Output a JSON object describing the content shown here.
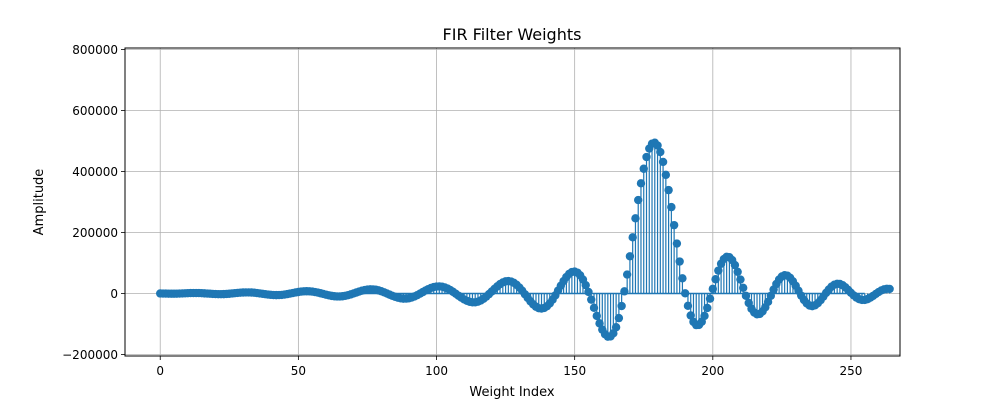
{
  "chart_data": {
    "type": "stem",
    "title": "FIR Filter Weights",
    "xlabel": "Weight Index",
    "ylabel": "Amplitude",
    "xlim": [
      -12.75,
      267.75
    ],
    "ylim": [
      -205000,
      805000
    ],
    "xticks": [
      0,
      50,
      100,
      150,
      200,
      250
    ],
    "xtick_labels": [
      "0",
      "50",
      "100",
      "150",
      "200",
      "250"
    ],
    "yticks": [
      -200000,
      0,
      200000,
      400000,
      600000,
      800000
    ],
    "ytick_labels": [
      "−200000",
      "0",
      "200000",
      "400000",
      "600000",
      "800000"
    ],
    "grid": true,
    "series": [
      {
        "color": "#1f77b4",
        "x_start": 0,
        "x_step": 1,
        "count": 256,
        "values": [
          0,
          -200,
          -400,
          -600,
          -800,
          -800,
          -600,
          -200,
          200,
          600,
          1000,
          1300,
          1500,
          1500,
          1300,
          900,
          400,
          -200,
          -800,
          -1400,
          -1900,
          -2200,
          -2300,
          -2100,
          -1600,
          -900,
          0,
          900,
          1800,
          2600,
          3200,
          3500,
          3500,
          3200,
          2500,
          1500,
          300,
          -1000,
          -2300,
          -3500,
          -4500,
          -5100,
          -5400,
          -5200,
          -4600,
          -3500,
          -2000,
          -300,
          1500,
          3300,
          4900,
          6200,
          7000,
          7300,
          7000,
          6200,
          4800,
          3000,
          800,
          -1500,
          -3800,
          -6000,
          -7800,
          -9100,
          -9800,
          -9800,
          -9100,
          -7600,
          -5500,
          -2900,
          100,
          3200,
          6300,
          9100,
          11300,
          12900,
          13600,
          13400,
          12300,
          10200,
          7400,
          4000,
          200,
          -3700,
          -7500,
          -10900,
          -13800,
          -15800,
          -16900,
          -16800,
          -15600,
          -13200,
          -9800,
          -5500,
          -600,
          4500,
          9500,
          14200,
          18100,
          21100,
          22800,
          23200,
          22200,
          19700,
          16000,
          11100,
          5300,
          -1000,
          -7500,
          -13800,
          -19400,
          -24000,
          -27300,
          -29000,
          -28800,
          -26800,
          -22900,
          -17300,
          -10200,
          -2100,
          6600,
          15300,
          23600,
          30800,
          36300,
          39700,
          40800,
          39200,
          35000,
          28300,
          19500,
          9000,
          -2600,
          -14500,
          -25800,
          -35700,
          -43400,
          -48100,
          -49500,
          -47300,
          -41600,
          -32500,
          -20400,
          -6100,
          9600,
          25600,
          40800,
          54000,
          64200,
          70400,
          71900,
          68300,
          59500,
          45700,
          27300,
          5100,
          -20200,
          -47000,
          -73500,
          -98000,
          -118700,
          -133700,
          -141500,
          -140800,
          -130700,
          -110700,
          -80700,
          -41100,
          7000,
          62100,
          121900,
          184200,
          246500,
          306300,
          361200,
          409000,
          447500,
          475300,
          491100,
          494500,
          485200,
          463800,
          431300,
          389000,
          339000,
          283300,
          224100,
          163800,
          104800,
          49800,
          600,
          -40500,
          -72100,
          -93300,
          -103700,
          -103200,
          -92700,
          -73500,
          -47500,
          -17100,
          15100,
          46700,
          74900,
          97500,
          112900,
          120100,
          118900,
          109500,
          93100,
          71100,
          45600,
          18600,
          -7700,
          -31200,
          -50000,
          -62600,
          -68300,
          -66900,
          -58900,
          -45200,
          -27400,
          -7500,
          12700,
          31100,
          45800,
          55700,
          59900,
          58300,
          51300,
          39900,
          25300,
          9000,
          -7100,
          -21400,
          -32500,
          -39400,
          -41500,
          -38800,
          -31900,
          -22000,
          -10200,
          2000,
          13300,
          22600,
          28900,
          31800,
          31100,
          27000,
          20100,
          11500,
          2300,
          -6300,
          -13500,
          -18700,
          -21200,
          -21100,
          -18500,
          -13800,
          -7900,
          -1400,
          4700,
          9900,
          13500,
          15300,
          15000
        ]
      }
    ]
  }
}
